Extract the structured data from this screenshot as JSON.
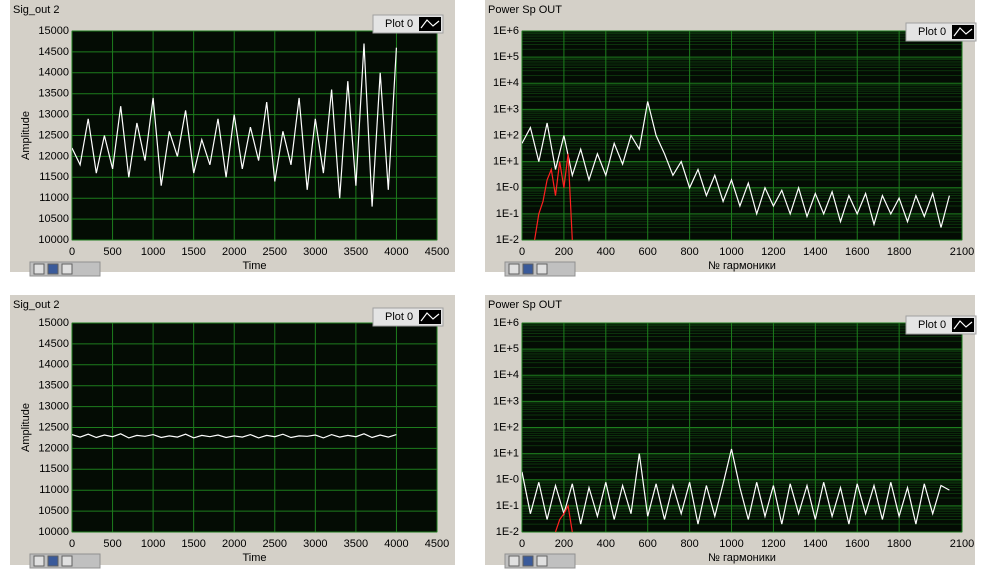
{
  "chart_data": [
    {
      "type": "line",
      "title": "Sig_out 2",
      "xlabel": "Time",
      "ylabel": "Amplitude",
      "legend": "top-right",
      "grid": true,
      "xlim": [
        0,
        4500
      ],
      "xticks": [
        0,
        500,
        1000,
        1500,
        2000,
        2500,
        3000,
        3500,
        4000,
        4500
      ],
      "ylim": [
        10000,
        15000
      ],
      "yticks": [
        10000,
        10500,
        11000,
        11500,
        12000,
        12500,
        13000,
        13500,
        14000,
        14500,
        15000
      ],
      "series": [
        {
          "name": "Plot 0",
          "color": "#ffffff",
          "x": [
            0,
            100,
            200,
            300,
            400,
            500,
            600,
            700,
            800,
            900,
            1000,
            1100,
            1200,
            1300,
            1400,
            1500,
            1600,
            1700,
            1800,
            1900,
            2000,
            2100,
            2200,
            2300,
            2400,
            2500,
            2600,
            2700,
            2800,
            2900,
            3000,
            3100,
            3200,
            3300,
            3400,
            3500,
            3600,
            3700,
            3800,
            3900,
            4000
          ],
          "values": [
            12200,
            11800,
            12900,
            11600,
            12500,
            11700,
            13200,
            11500,
            12800,
            11900,
            13400,
            11300,
            12600,
            12000,
            13100,
            11600,
            12400,
            11800,
            12900,
            11500,
            13000,
            11700,
            12700,
            11900,
            13300,
            11400,
            12600,
            11800,
            13400,
            11200,
            12900,
            11600,
            13600,
            11000,
            13800,
            11300,
            14700,
            10800,
            14000,
            11200,
            14600
          ]
        }
      ]
    },
    {
      "type": "line",
      "title": "Power Sp OUT",
      "xlabel": "№ гармоники",
      "legend": "top-right",
      "grid": true,
      "log_y": true,
      "xlim": [
        0,
        2100
      ],
      "xticks": [
        0,
        200,
        400,
        600,
        800,
        1000,
        1200,
        1400,
        1600,
        1800,
        2100
      ],
      "ylim": [
        0.01,
        1000000
      ],
      "yticks": [
        {
          "value": 0.01,
          "label": "1E-2"
        },
        {
          "value": 0.1,
          "label": "1E-1"
        },
        {
          "value": 1,
          "label": "1E-0"
        },
        {
          "value": 10,
          "label": "1E+1"
        },
        {
          "value": 100,
          "label": "1E+2"
        },
        {
          "value": 1000,
          "label": "1E+3"
        },
        {
          "value": 10000,
          "label": "1E+4"
        },
        {
          "value": 100000,
          "label": "1E+5"
        },
        {
          "value": 1000000,
          "label": "1E+6"
        }
      ],
      "series": [
        {
          "name": "Plot 0",
          "color": "#ffffff",
          "x": [
            0,
            40,
            80,
            120,
            160,
            200,
            240,
            280,
            320,
            360,
            400,
            440,
            480,
            520,
            560,
            600,
            640,
            680,
            720,
            760,
            800,
            840,
            880,
            920,
            960,
            1000,
            1040,
            1080,
            1120,
            1160,
            1200,
            1240,
            1280,
            1320,
            1360,
            1400,
            1440,
            1480,
            1520,
            1560,
            1600,
            1640,
            1680,
            1720,
            1760,
            1800,
            1840,
            1880,
            1920,
            1960,
            2000,
            2040
          ],
          "values": [
            50,
            200,
            10,
            300,
            5,
            100,
            3,
            30,
            2,
            20,
            3,
            50,
            8,
            100,
            30,
            2000,
            100,
            20,
            3,
            10,
            1,
            5,
            0.5,
            3,
            0.3,
            2,
            0.2,
            1.5,
            0.1,
            1,
            0.2,
            0.8,
            0.1,
            1,
            0.08,
            0.6,
            0.1,
            0.7,
            0.05,
            0.5,
            0.1,
            0.6,
            0.04,
            0.5,
            0.1,
            0.4,
            0.05,
            0.5,
            0.08,
            0.6,
            0.03,
            0.5
          ]
        },
        {
          "color": "#ff2020",
          "x": [
            60,
            80,
            100,
            120,
            140,
            160,
            180,
            200,
            220,
            240
          ],
          "values": [
            0.01,
            0.1,
            0.3,
            2,
            5,
            0.5,
            10,
            1,
            20,
            0.01
          ]
        }
      ]
    },
    {
      "type": "line",
      "title": "Sig_out 2",
      "xlabel": "Time",
      "ylabel": "Amplitude",
      "legend": "top-right",
      "grid": true,
      "xlim": [
        0,
        4500
      ],
      "xticks": [
        0,
        500,
        1000,
        1500,
        2000,
        2500,
        3000,
        3500,
        4000,
        4500
      ],
      "ylim": [
        10000,
        15000
      ],
      "yticks": [
        10000,
        10500,
        11000,
        11500,
        12000,
        12500,
        13000,
        13500,
        14000,
        14500,
        15000
      ],
      "series": [
        {
          "name": "Plot 0",
          "color": "#ffffff",
          "x": [
            0,
            100,
            200,
            300,
            400,
            500,
            600,
            700,
            800,
            900,
            1000,
            1100,
            1200,
            1300,
            1400,
            1500,
            1600,
            1700,
            1800,
            1900,
            2000,
            2100,
            2200,
            2300,
            2400,
            2500,
            2600,
            2700,
            2800,
            2900,
            3000,
            3100,
            3200,
            3300,
            3400,
            3500,
            3600,
            3700,
            3800,
            3900,
            4000
          ],
          "values": [
            12330,
            12270,
            12340,
            12260,
            12320,
            12280,
            12350,
            12250,
            12310,
            12290,
            12330,
            12260,
            12300,
            12270,
            12340,
            12250,
            12310,
            12280,
            12320,
            12260,
            12300,
            12270,
            12330,
            12250,
            12310,
            12280,
            12340,
            12260,
            12300,
            12290,
            12320,
            12250,
            12330,
            12270,
            12310,
            12280,
            12350,
            12260,
            12320,
            12270,
            12330
          ]
        }
      ]
    },
    {
      "type": "line",
      "title": "Power Sp OUT",
      "xlabel": "№ гармоники",
      "legend": "top-right",
      "grid": true,
      "log_y": true,
      "xlim": [
        0,
        2100
      ],
      "xticks": [
        0,
        200,
        400,
        600,
        800,
        1000,
        1200,
        1400,
        1600,
        1800,
        2100
      ],
      "ylim": [
        0.01,
        1000000
      ],
      "yticks": [
        {
          "value": 0.01,
          "label": "1E-2"
        },
        {
          "value": 0.1,
          "label": "1E-1"
        },
        {
          "value": 1,
          "label": "1E-0"
        },
        {
          "value": 10,
          "label": "1E+1"
        },
        {
          "value": 100,
          "label": "1E+2"
        },
        {
          "value": 1000,
          "label": "1E+3"
        },
        {
          "value": 10000,
          "label": "1E+4"
        },
        {
          "value": 100000,
          "label": "1E+5"
        },
        {
          "value": 1000000,
          "label": "1E+6"
        }
      ],
      "series": [
        {
          "name": "Plot 0",
          "color": "#ffffff",
          "x": [
            0,
            40,
            80,
            120,
            160,
            200,
            240,
            280,
            320,
            360,
            400,
            440,
            480,
            520,
            560,
            600,
            640,
            680,
            720,
            760,
            800,
            840,
            880,
            920,
            960,
            1000,
            1040,
            1080,
            1120,
            1160,
            1200,
            1240,
            1280,
            1320,
            1360,
            1400,
            1440,
            1480,
            1520,
            1560,
            1600,
            1640,
            1680,
            1720,
            1760,
            1800,
            1840,
            1880,
            1920,
            1960,
            2000,
            2040
          ],
          "values": [
            2,
            0.05,
            0.8,
            0.03,
            0.6,
            0.05,
            0.7,
            0.02,
            0.5,
            0.04,
            0.8,
            0.03,
            0.6,
            0.05,
            10,
            0.04,
            0.7,
            0.03,
            0.6,
            0.05,
            0.8,
            0.02,
            0.6,
            0.04,
            0.7,
            15,
            0.5,
            0.03,
            0.8,
            0.04,
            0.6,
            0.02,
            0.7,
            0.05,
            0.6,
            0.03,
            0.8,
            0.04,
            0.5,
            0.02,
            0.7,
            0.05,
            0.6,
            0.03,
            0.8,
            0.04,
            0.5,
            0.02,
            0.7,
            0.05,
            0.6,
            0.4
          ]
        },
        {
          "color": "#ff2020",
          "x": [
            160,
            180,
            200,
            220,
            240
          ],
          "values": [
            0.01,
            0.03,
            0.05,
            0.1,
            0.01
          ]
        }
      ]
    }
  ]
}
